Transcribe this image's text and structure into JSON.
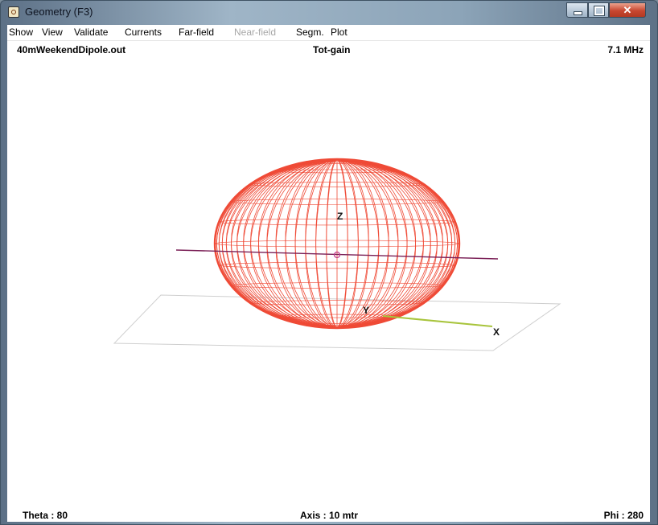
{
  "window": {
    "title": "Geometry  (F3)",
    "icon": "geometry-app-icon"
  },
  "menu": [
    {
      "label": "Show",
      "enabled": true
    },
    {
      "label": "View",
      "enabled": true
    },
    {
      "label": "Validate",
      "enabled": true
    },
    {
      "label": "Currents",
      "enabled": true
    },
    {
      "label": "Far-field",
      "enabled": true
    },
    {
      "label": "Near-field",
      "enabled": false
    },
    {
      "label": "Segm.",
      "enabled": true
    },
    {
      "label": "Plot",
      "enabled": true
    }
  ],
  "header": {
    "filename": "40mWeekendDipole.out",
    "plot_type": "Tot-gain",
    "frequency": "7.1 MHz"
  },
  "footer": {
    "theta": "Theta : 80",
    "axis": "Axis : 10 mtr",
    "phi": "Phi : 280"
  },
  "axes": {
    "z": "Z",
    "y": "Y",
    "x": "X"
  },
  "colors": {
    "pattern": "#ef4a36",
    "wire": "#7a1f56",
    "x_axis": "#a8c43c",
    "ground": "#c8c8c8"
  }
}
